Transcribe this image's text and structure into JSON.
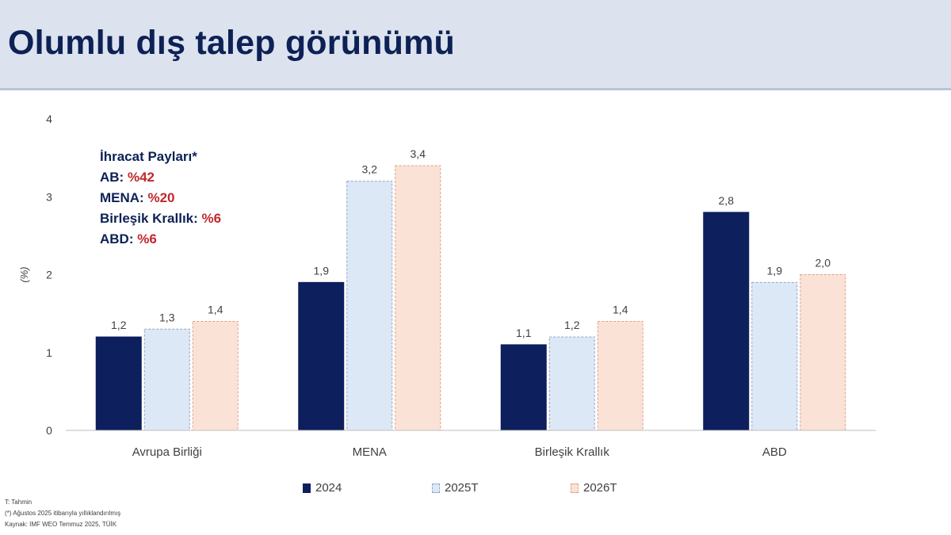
{
  "title": "Olumlu dış talep görünümü",
  "share_box": {
    "heading": "İhracat Payları*",
    "items": [
      {
        "label": "AB: ",
        "value": "%42"
      },
      {
        "label": "MENA: ",
        "value": "%20"
      },
      {
        "label": "Birleşik Krallık: ",
        "value": "%6"
      },
      {
        "label": "ABD: ",
        "value": "%6"
      }
    ]
  },
  "chart_data": {
    "type": "bar",
    "categories": [
      "Avrupa Birliği",
      "MENA",
      "Birleşik Krallık",
      "ABD"
    ],
    "series": [
      {
        "name": "2024",
        "values": [
          1.2,
          1.9,
          1.1,
          2.8
        ],
        "value_labels": [
          "1,2",
          "1,9",
          "1,1",
          "2,8"
        ],
        "fill": "#0d1f5c",
        "stroke": "#0d1f5c",
        "dashed": false
      },
      {
        "name": "2025T",
        "values": [
          1.3,
          3.2,
          1.2,
          1.9
        ],
        "value_labels": [
          "1,3",
          "3,2",
          "1,2",
          "1,9"
        ],
        "fill": "#dde8f6",
        "stroke": "#8ea6c8",
        "dashed": true
      },
      {
        "name": "2026T",
        "values": [
          1.4,
          3.4,
          1.4,
          2.0
        ],
        "value_labels": [
          "1,4",
          "3,4",
          "1,4",
          "2,0"
        ],
        "fill": "#fbe2d6",
        "stroke": "#e0a08a",
        "dashed": true
      }
    ],
    "ylabel": "(%)",
    "ylim": [
      0,
      4
    ],
    "yticks": [
      0,
      1,
      2,
      3,
      4
    ],
    "grid": false,
    "legend_position": "bottom"
  },
  "notes": [
    "T: Tahmin",
    "(*) Ağustos 2025 itibarıyla yıllıklandırılmış",
    "Kaynak: IMF WEO Temmuz  2025, TÜİK"
  ]
}
